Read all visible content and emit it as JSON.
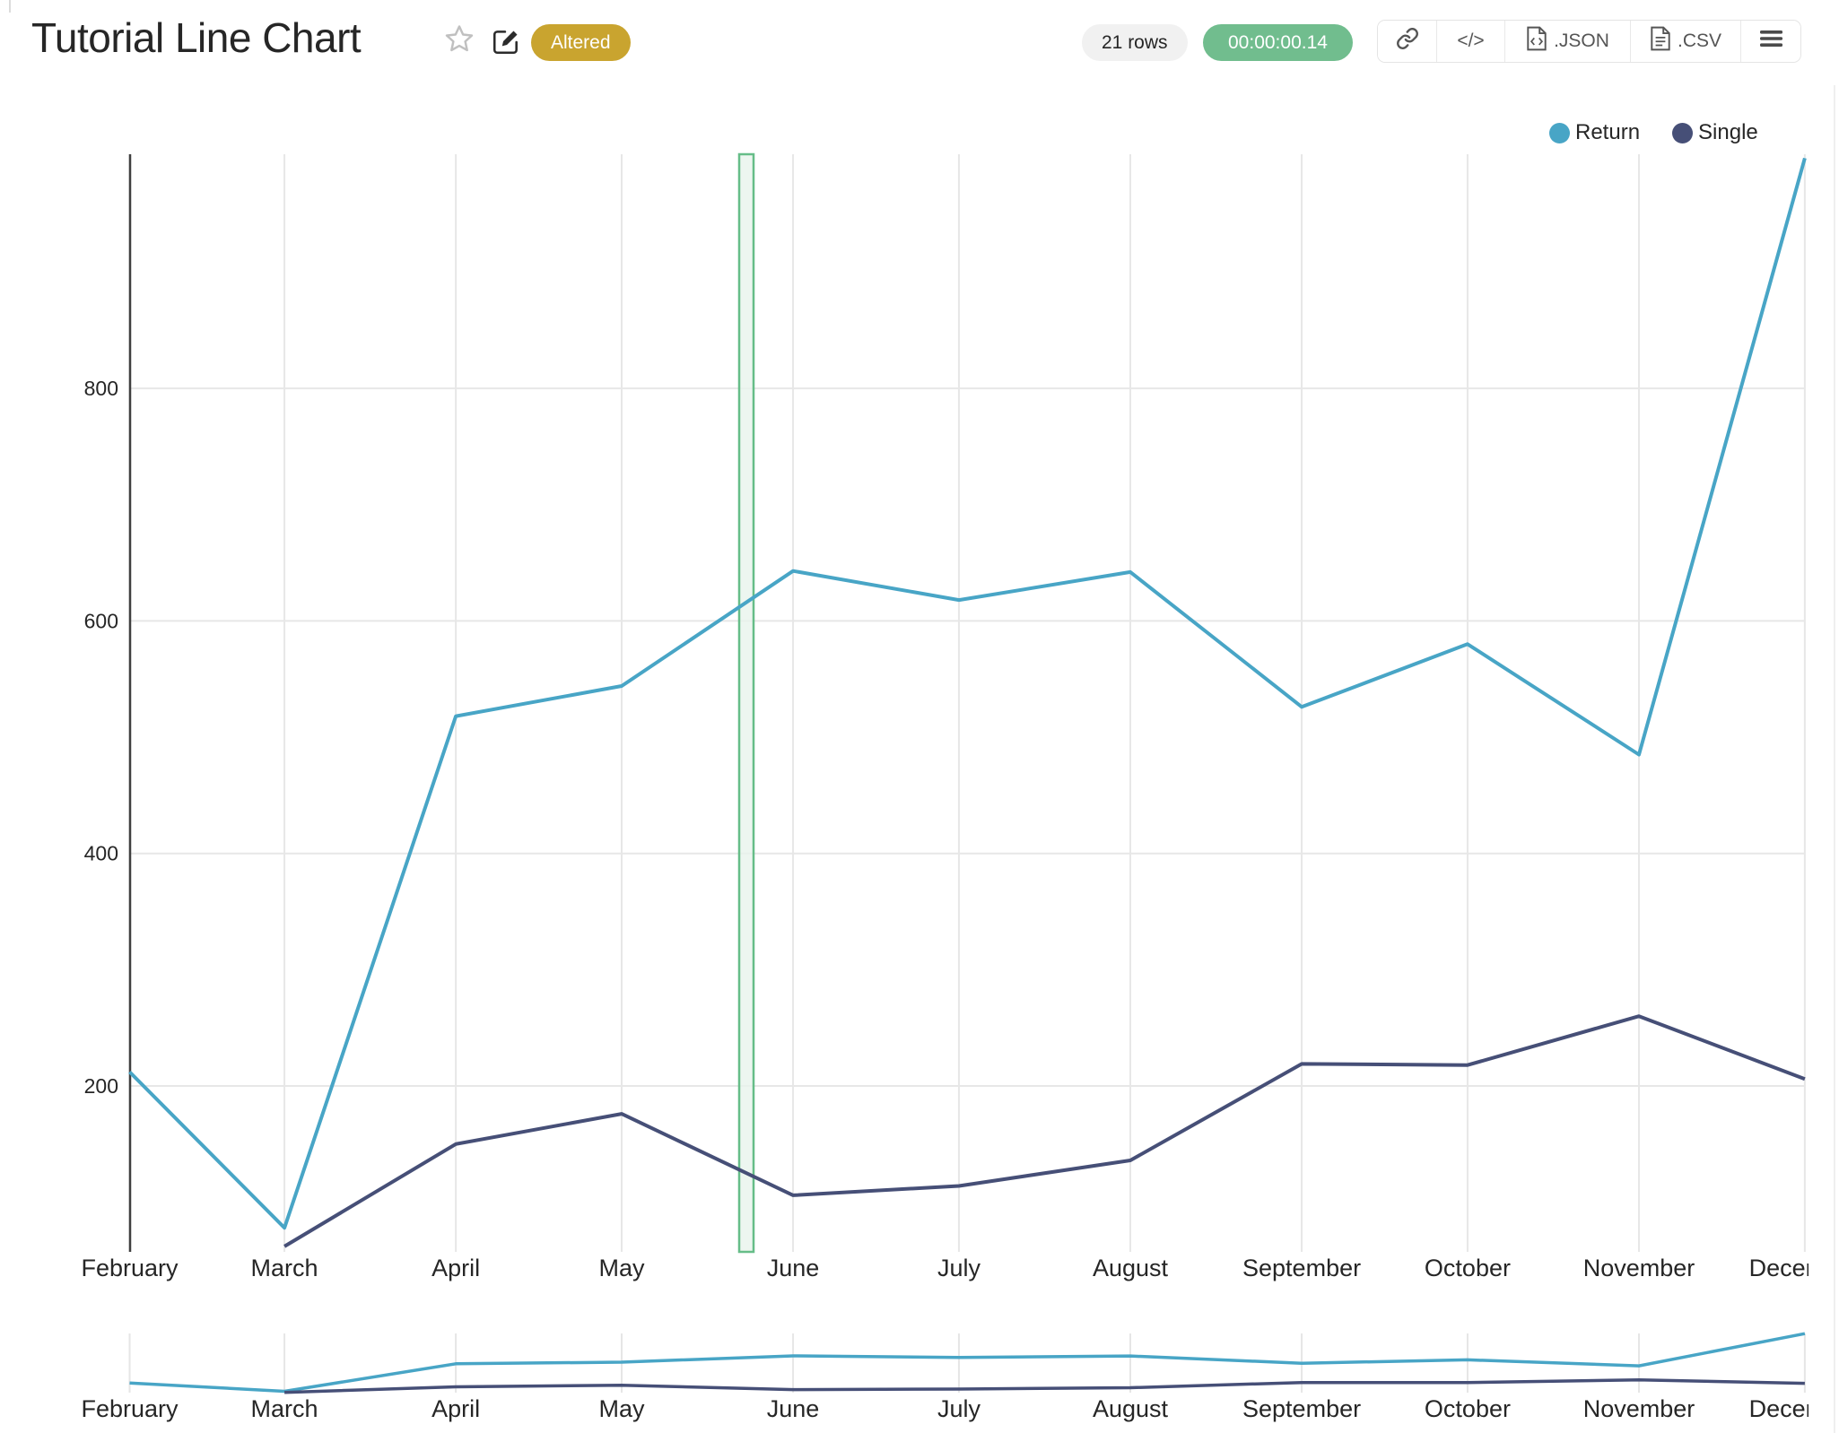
{
  "header": {
    "title": "Tutorial Line Chart",
    "status_badge": "Altered",
    "rows_badge": "21 rows",
    "runtime_badge": "00:00:00.14"
  },
  "toolbar": {
    "link_icon": "chain-link",
    "code_label": "</>",
    "json_label": ".JSON",
    "csv_label": ".CSV",
    "menu_icon": "hamburger-menu"
  },
  "chart_data": {
    "type": "line",
    "title": "",
    "x": [
      "February",
      "March",
      "April",
      "May",
      "June",
      "July",
      "August",
      "September",
      "October",
      "November",
      "December"
    ],
    "series": [
      {
        "name": "Return",
        "color": "#48a5c6",
        "values": [
          212,
          78,
          518,
          544,
          643,
          618,
          642,
          526,
          580,
          485,
          998
        ]
      },
      {
        "name": "Single",
        "color": "#464f77",
        "values": [
          null,
          62,
          150,
          176,
          106,
          114,
          136,
          219,
          218,
          260,
          206
        ]
      }
    ],
    "yticks": [
      200,
      400,
      600,
      800
    ],
    "ylim": [
      57,
      1001
    ],
    "xlabel": "",
    "ylabel": "",
    "grid": true,
    "legend": {
      "position": "top-right",
      "entries": [
        "Return",
        "Single"
      ]
    },
    "selection_band": {
      "location": "between May and June",
      "fill": "#e8f4ec",
      "border": "#66bd88"
    },
    "range_slider": true
  },
  "colors": {
    "badge_altered_bg": "#c9a42f",
    "runtime_badge_bg": "#71bd8e",
    "rows_badge_bg": "#f1f1f1",
    "grid": "#e7e7e7",
    "axis_line": "#3f3f3f",
    "text": "#262626"
  }
}
